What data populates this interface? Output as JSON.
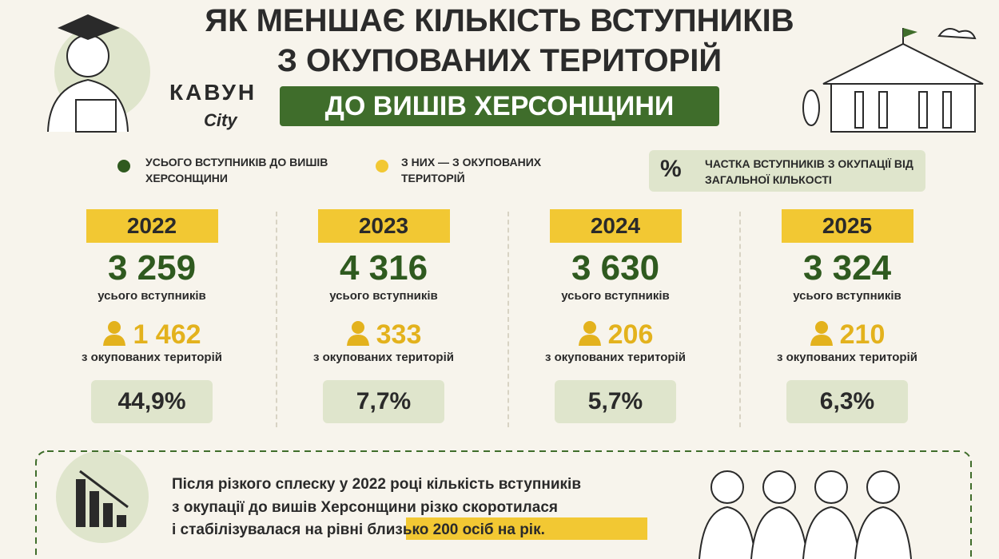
{
  "header": {
    "title_line1": "ЯК МЕНШАЄ КІЛЬКІСТЬ ВСТУПНИКІВ",
    "title_line2": "З ОКУПОВАНИХ ТЕРИТОРІЙ",
    "banner": "ДО ВИШІВ ХЕРСОНЩИНИ"
  },
  "logo": {
    "name": "КАВУН",
    "sub": "City"
  },
  "legend": {
    "total": "УСЬОГО ВСТУПНИКІВ ДО ВИШІВ ХЕРСОНЩИНИ",
    "occupied": "З НИХ — З ОКУПОВАНИХ ТЕРИТОРІЙ",
    "share": "ЧАСТКА ВСТУПНИКІВ З ОКУПАЦІЇ ВІД ЗАГАЛЬНОЇ КІЛЬКОСТІ",
    "share_icon": "%"
  },
  "years": [
    {
      "year": "2022",
      "total": "3 259",
      "total_label": "усього вступників",
      "occupied": "1 462",
      "occupied_label": "з окупованих територій",
      "share": "44,9%"
    },
    {
      "year": "2023",
      "total": "4 316",
      "total_label": "усього вступників",
      "occupied": "333",
      "occupied_label": "з окупованих територій",
      "share": "7,7%"
    },
    {
      "year": "2024",
      "total": "3 630",
      "total_label": "усього вступників",
      "occupied": "206",
      "occupied_label": "з окупованих територій",
      "share": "5,7%"
    },
    {
      "year": "2025",
      "total": "3 324",
      "total_label": "усього вступників",
      "occupied": "210",
      "occupied_label": "з окупованих територій",
      "share": "6,3%"
    }
  ],
  "footer": {
    "line1": "Після різкого сплеску у 2022 році кількість вступників",
    "line2": "з окупації до вишів Херсонщини різко скоротилася",
    "line3": "і стабілізувалася на рівні",
    "highlight": "близько 200 осіб на рік."
  }
}
